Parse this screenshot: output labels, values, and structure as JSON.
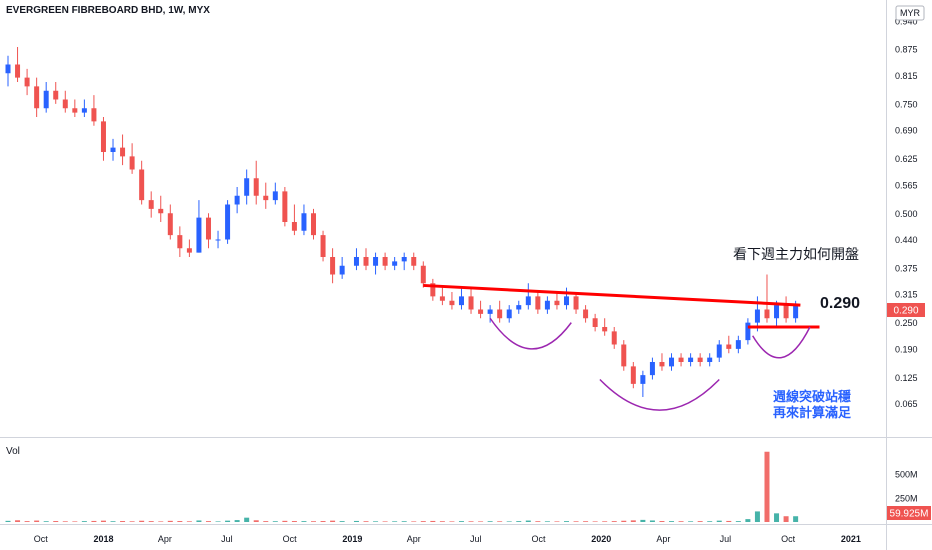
{
  "header": {
    "symbol_line": "EVERGREEN FIBREBOARD BHD, 1W, MYX",
    "currency_button": "MYR"
  },
  "price_axis": {
    "ticks": [
      "0.940",
      "0.875",
      "0.815",
      "0.750",
      "0.690",
      "0.625",
      "0.565",
      "0.500",
      "0.440",
      "0.375",
      "0.315",
      "0.250",
      "0.190",
      "0.125",
      "0.065"
    ],
    "last_price_label": "0.290",
    "colors": {
      "last_price_bg": "#ef5350",
      "axis_text": "#131722"
    }
  },
  "volume_pane": {
    "title": "Vol",
    "ticks": [
      "500M",
      "250M"
    ],
    "last_volume_label": "59.925M"
  },
  "time_axis": {
    "labels": [
      "Oct",
      "2018",
      "Apr",
      "Jul",
      "Oct",
      "2019",
      "Apr",
      "Jul",
      "Oct",
      "2020",
      "Apr",
      "Jul",
      "Oct",
      "2021"
    ]
  },
  "annotations": {
    "resistance_value": "0.290",
    "note_top": "看下週主力如何開盤",
    "note_bottom_line1": "週線突破站穩",
    "note_bottom_line2": "再來計算滿足"
  },
  "colors": {
    "up": "#26a69a",
    "down": "#ef5350",
    "candle_up": "#2962ff",
    "candle_down": "#ef5350",
    "neckline": "#ff0000",
    "arc": "#9c27b0",
    "note_blue": "#2962ff"
  },
  "chart_data": {
    "type": "candlestick",
    "interval": "1W",
    "y_range": [
      0.0,
      0.96
    ],
    "x_range": [
      "2017-08-14",
      "2021-02-01"
    ],
    "candles": [
      [
        "2017-08-14",
        0.82,
        0.86,
        0.79,
        0.84
      ],
      [
        "2017-08-28",
        0.84,
        0.88,
        0.8,
        0.81
      ],
      [
        "2017-09-11",
        0.81,
        0.83,
        0.77,
        0.79
      ],
      [
        "2017-09-25",
        0.79,
        0.81,
        0.72,
        0.74
      ],
      [
        "2017-10-09",
        0.74,
        0.8,
        0.73,
        0.78
      ],
      [
        "2017-10-23",
        0.78,
        0.8,
        0.75,
        0.76
      ],
      [
        "2017-11-06",
        0.76,
        0.78,
        0.73,
        0.74
      ],
      [
        "2017-11-20",
        0.74,
        0.76,
        0.72,
        0.73
      ],
      [
        "2017-12-04",
        0.73,
        0.76,
        0.72,
        0.74
      ],
      [
        "2017-12-18",
        0.74,
        0.77,
        0.7,
        0.71
      ],
      [
        "2018-01-01",
        0.71,
        0.72,
        0.62,
        0.64
      ],
      [
        "2018-01-15",
        0.64,
        0.67,
        0.62,
        0.65
      ],
      [
        "2018-01-29",
        0.65,
        0.68,
        0.61,
        0.63
      ],
      [
        "2018-02-12",
        0.63,
        0.66,
        0.59,
        0.6
      ],
      [
        "2018-02-26",
        0.6,
        0.62,
        0.52,
        0.53
      ],
      [
        "2018-03-12",
        0.53,
        0.55,
        0.49,
        0.51
      ],
      [
        "2018-03-26",
        0.51,
        0.54,
        0.48,
        0.5
      ],
      [
        "2018-04-09",
        0.5,
        0.52,
        0.44,
        0.45
      ],
      [
        "2018-04-23",
        0.45,
        0.47,
        0.4,
        0.42
      ],
      [
        "2018-05-07",
        0.42,
        0.44,
        0.4,
        0.41
      ],
      [
        "2018-05-21",
        0.41,
        0.53,
        0.41,
        0.49
      ],
      [
        "2018-06-04",
        0.49,
        0.5,
        0.42,
        0.44
      ],
      [
        "2018-06-18",
        0.44,
        0.46,
        0.42,
        0.44
      ],
      [
        "2018-07-02",
        0.44,
        0.53,
        0.43,
        0.52
      ],
      [
        "2018-07-16",
        0.52,
        0.56,
        0.5,
        0.54
      ],
      [
        "2018-07-30",
        0.54,
        0.6,
        0.52,
        0.58
      ],
      [
        "2018-08-13",
        0.58,
        0.62,
        0.52,
        0.54
      ],
      [
        "2018-08-27",
        0.54,
        0.57,
        0.51,
        0.53
      ],
      [
        "2018-09-10",
        0.53,
        0.57,
        0.52,
        0.55
      ],
      [
        "2018-09-24",
        0.55,
        0.56,
        0.47,
        0.48
      ],
      [
        "2018-10-08",
        0.48,
        0.52,
        0.45,
        0.46
      ],
      [
        "2018-10-22",
        0.46,
        0.52,
        0.45,
        0.5
      ],
      [
        "2018-11-05",
        0.5,
        0.51,
        0.44,
        0.45
      ],
      [
        "2018-11-19",
        0.45,
        0.46,
        0.39,
        0.4
      ],
      [
        "2018-12-03",
        0.4,
        0.42,
        0.34,
        0.36
      ],
      [
        "2018-12-17",
        0.36,
        0.4,
        0.35,
        0.38
      ],
      [
        "2019-01-07",
        0.38,
        0.42,
        0.37,
        0.4
      ],
      [
        "2019-01-21",
        0.4,
        0.42,
        0.37,
        0.38
      ],
      [
        "2019-02-04",
        0.38,
        0.41,
        0.36,
        0.4
      ],
      [
        "2019-02-18",
        0.4,
        0.41,
        0.37,
        0.38
      ],
      [
        "2019-03-04",
        0.38,
        0.4,
        0.37,
        0.39
      ],
      [
        "2019-03-18",
        0.39,
        0.41,
        0.37,
        0.4
      ],
      [
        "2019-04-01",
        0.4,
        0.41,
        0.37,
        0.38
      ],
      [
        "2019-04-15",
        0.38,
        0.39,
        0.33,
        0.34
      ],
      [
        "2019-04-29",
        0.34,
        0.35,
        0.3,
        0.31
      ],
      [
        "2019-05-13",
        0.31,
        0.33,
        0.29,
        0.3
      ],
      [
        "2019-05-27",
        0.3,
        0.32,
        0.28,
        0.29
      ],
      [
        "2019-06-10",
        0.29,
        0.33,
        0.28,
        0.31
      ],
      [
        "2019-06-24",
        0.31,
        0.33,
        0.27,
        0.28
      ],
      [
        "2019-07-08",
        0.28,
        0.3,
        0.26,
        0.27
      ],
      [
        "2019-07-22",
        0.27,
        0.29,
        0.25,
        0.28
      ],
      [
        "2019-08-05",
        0.28,
        0.3,
        0.25,
        0.26
      ],
      [
        "2019-08-19",
        0.26,
        0.29,
        0.25,
        0.28
      ],
      [
        "2019-09-02",
        0.28,
        0.3,
        0.27,
        0.29
      ],
      [
        "2019-09-16",
        0.29,
        0.34,
        0.28,
        0.31
      ],
      [
        "2019-09-30",
        0.31,
        0.32,
        0.27,
        0.28
      ],
      [
        "2019-10-14",
        0.28,
        0.31,
        0.27,
        0.3
      ],
      [
        "2019-10-28",
        0.3,
        0.32,
        0.28,
        0.29
      ],
      [
        "2019-11-11",
        0.29,
        0.33,
        0.28,
        0.31
      ],
      [
        "2019-11-25",
        0.31,
        0.32,
        0.27,
        0.28
      ],
      [
        "2019-12-09",
        0.28,
        0.29,
        0.25,
        0.26
      ],
      [
        "2019-12-23",
        0.26,
        0.27,
        0.23,
        0.24
      ],
      [
        "2020-01-06",
        0.24,
        0.26,
        0.22,
        0.23
      ],
      [
        "2020-01-20",
        0.23,
        0.24,
        0.19,
        0.2
      ],
      [
        "2020-02-03",
        0.2,
        0.21,
        0.14,
        0.15
      ],
      [
        "2020-02-17",
        0.15,
        0.16,
        0.1,
        0.11
      ],
      [
        "2020-03-02",
        0.11,
        0.14,
        0.08,
        0.13
      ],
      [
        "2020-03-16",
        0.13,
        0.17,
        0.12,
        0.16
      ],
      [
        "2020-03-30",
        0.16,
        0.18,
        0.14,
        0.15
      ],
      [
        "2020-04-13",
        0.15,
        0.18,
        0.14,
        0.17
      ],
      [
        "2020-04-27",
        0.17,
        0.18,
        0.15,
        0.16
      ],
      [
        "2020-05-11",
        0.16,
        0.18,
        0.15,
        0.17
      ],
      [
        "2020-05-25",
        0.17,
        0.18,
        0.15,
        0.16
      ],
      [
        "2020-06-08",
        0.16,
        0.18,
        0.15,
        0.17
      ],
      [
        "2020-06-22",
        0.17,
        0.21,
        0.16,
        0.2
      ],
      [
        "2020-07-06",
        0.2,
        0.22,
        0.18,
        0.19
      ],
      [
        "2020-07-20",
        0.19,
        0.22,
        0.18,
        0.21
      ],
      [
        "2020-08-03",
        0.21,
        0.26,
        0.2,
        0.25
      ],
      [
        "2020-08-17",
        0.25,
        0.31,
        0.23,
        0.28
      ],
      [
        "2020-08-31",
        0.28,
        0.36,
        0.25,
        0.26
      ],
      [
        "2020-09-14",
        0.26,
        0.3,
        0.24,
        0.29
      ],
      [
        "2020-09-28",
        0.29,
        0.31,
        0.25,
        0.26
      ],
      [
        "2020-10-12",
        0.26,
        0.3,
        0.25,
        0.29
      ]
    ],
    "volume": [
      [
        "2017-08-14",
        12
      ],
      [
        "2017-08-28",
        18
      ],
      [
        "2017-09-11",
        9
      ],
      [
        "2017-09-25",
        15
      ],
      [
        "2017-10-09",
        8
      ],
      [
        "2017-10-23",
        10
      ],
      [
        "2017-11-06",
        7
      ],
      [
        "2017-11-20",
        6
      ],
      [
        "2017-12-04",
        9
      ],
      [
        "2017-12-18",
        11
      ],
      [
        "2018-01-01",
        14
      ],
      [
        "2018-01-15",
        8
      ],
      [
        "2018-01-29",
        10
      ],
      [
        "2018-02-12",
        7
      ],
      [
        "2018-02-26",
        13
      ],
      [
        "2018-03-12",
        9
      ],
      [
        "2018-03-26",
        6
      ],
      [
        "2018-04-09",
        12
      ],
      [
        "2018-04-23",
        10
      ],
      [
        "2018-05-07",
        7
      ],
      [
        "2018-05-21",
        16
      ],
      [
        "2018-06-04",
        9
      ],
      [
        "2018-06-18",
        6
      ],
      [
        "2018-07-02",
        14
      ],
      [
        "2018-07-16",
        20
      ],
      [
        "2018-07-30",
        45
      ],
      [
        "2018-08-13",
        18
      ],
      [
        "2018-08-27",
        9
      ],
      [
        "2018-09-10",
        8
      ],
      [
        "2018-09-24",
        12
      ],
      [
        "2018-10-08",
        10
      ],
      [
        "2018-10-22",
        9
      ],
      [
        "2018-11-05",
        8
      ],
      [
        "2018-11-19",
        10
      ],
      [
        "2018-12-03",
        14
      ],
      [
        "2018-12-17",
        9
      ],
      [
        "2019-01-07",
        11
      ],
      [
        "2019-01-21",
        8
      ],
      [
        "2019-02-04",
        7
      ],
      [
        "2019-02-18",
        6
      ],
      [
        "2019-03-04",
        7
      ],
      [
        "2019-03-18",
        8
      ],
      [
        "2019-04-01",
        6
      ],
      [
        "2019-04-15",
        9
      ],
      [
        "2019-04-29",
        11
      ],
      [
        "2019-05-13",
        8
      ],
      [
        "2019-05-27",
        6
      ],
      [
        "2019-06-10",
        9
      ],
      [
        "2019-06-24",
        7
      ],
      [
        "2019-07-08",
        6
      ],
      [
        "2019-07-22",
        8
      ],
      [
        "2019-08-05",
        7
      ],
      [
        "2019-08-19",
        6
      ],
      [
        "2019-09-02",
        9
      ],
      [
        "2019-09-16",
        15
      ],
      [
        "2019-09-30",
        8
      ],
      [
        "2019-10-14",
        7
      ],
      [
        "2019-10-28",
        6
      ],
      [
        "2019-11-11",
        9
      ],
      [
        "2019-11-25",
        7
      ],
      [
        "2019-12-09",
        8
      ],
      [
        "2019-12-23",
        6
      ],
      [
        "2020-01-06",
        7
      ],
      [
        "2020-01-20",
        9
      ],
      [
        "2020-02-03",
        13
      ],
      [
        "2020-02-17",
        17
      ],
      [
        "2020-03-02",
        22
      ],
      [
        "2020-03-16",
        16
      ],
      [
        "2020-03-30",
        10
      ],
      [
        "2020-04-13",
        9
      ],
      [
        "2020-04-27",
        8
      ],
      [
        "2020-05-11",
        7
      ],
      [
        "2020-05-25",
        9
      ],
      [
        "2020-06-08",
        8
      ],
      [
        "2020-06-22",
        14
      ],
      [
        "2020-07-06",
        11
      ],
      [
        "2020-07-20",
        9
      ],
      [
        "2020-08-03",
        30
      ],
      [
        "2020-08-17",
        110
      ],
      [
        "2020-08-31",
        730
      ],
      [
        "2020-09-14",
        90
      ],
      [
        "2020-09-28",
        60
      ],
      [
        "2020-10-12",
        59.925
      ]
    ],
    "resistance_line": {
      "from": [
        "2019-04-15",
        0.335
      ],
      "to": [
        "2020-10-19",
        0.29
      ]
    },
    "support_line": {
      "from": [
        "2020-08-03",
        0.24
      ],
      "to": [
        "2020-11-16",
        0.24
      ]
    },
    "arcs": [
      {
        "from": [
          "2019-07-22",
          0.26
        ],
        "to": [
          "2019-11-18",
          0.25
        ],
        "depth": 0.06
      },
      {
        "from": [
          "2019-12-30",
          0.12
        ],
        "to": [
          "2020-06-22",
          0.12
        ],
        "depth": 0.07
      },
      {
        "from": [
          "2020-08-10",
          0.22
        ],
        "to": [
          "2020-11-02",
          0.24
        ],
        "depth": 0.05
      }
    ]
  }
}
